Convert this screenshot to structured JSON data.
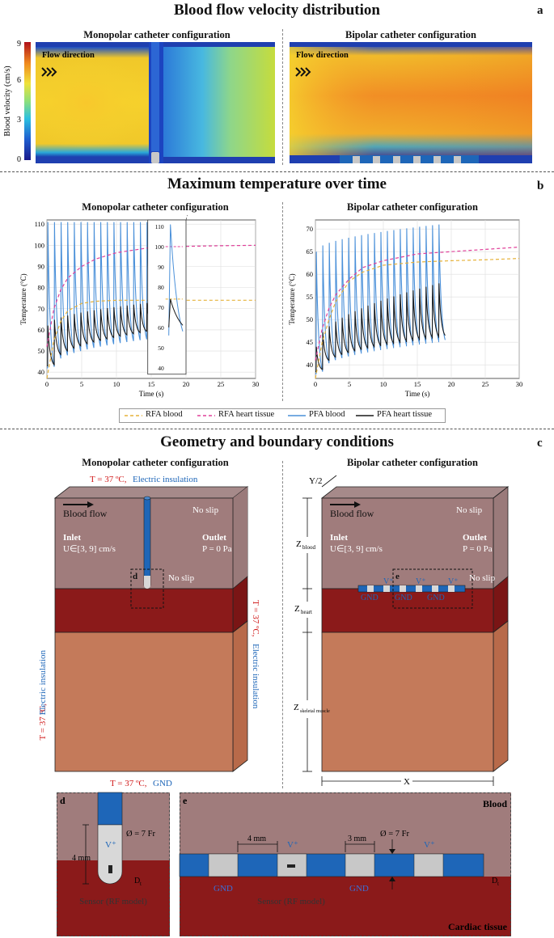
{
  "panel_a": {
    "title": "Blood flow velocity distribution",
    "letter": "a",
    "left_title": "Monopolar catheter configuration",
    "right_title": "Bipolar catheter configuration",
    "colorbar_label": "Blood velocity (cm/s)",
    "colorbar_ticks": [
      "9",
      "6",
      "3",
      "0"
    ],
    "flow_direction": "Flow direction"
  },
  "panel_b": {
    "title": "Maximum temperature over time",
    "letter": "b",
    "left_title": "Monopolar catheter configuration",
    "right_title": "Bipolar catheter configuration",
    "legend": [
      "RFA blood",
      "RFA heart tissue",
      "PFA blood",
      "PFA heart tissue"
    ]
  },
  "chart_data": [
    {
      "type": "line",
      "title": "Monopolar catheter configuration",
      "xlabel": "Time (s)",
      "ylabel": "Temperature (°C)",
      "xlim": [
        0,
        30
      ],
      "ylim": [
        37,
        112
      ],
      "xticks": [
        0,
        5,
        10,
        15,
        20,
        25,
        30
      ],
      "yticks": [
        40,
        50,
        60,
        70,
        80,
        90,
        100,
        110
      ],
      "grid": true,
      "pulse_count": 20,
      "series": [
        {
          "name": "RFA blood",
          "style": "dashed",
          "color": "#e6b23a",
          "x": [
            0,
            1,
            2,
            3,
            5,
            7,
            10,
            15,
            20,
            25,
            30
          ],
          "y": [
            37,
            55,
            64,
            69,
            72.5,
            73.5,
            74,
            74,
            74,
            74,
            74
          ]
        },
        {
          "name": "RFA heart tissue",
          "style": "dashed",
          "color": "#e0409a",
          "x": [
            0,
            1,
            2,
            3,
            5,
            7,
            10,
            15,
            20,
            25,
            30
          ],
          "y": [
            52,
            70,
            79,
            84.5,
            90,
            93.5,
            96.5,
            99,
            99.5,
            99.8,
            100
          ]
        },
        {
          "name": "PFA blood",
          "style": "solid",
          "color": "#4a90d9",
          "peak": 111,
          "base_start": 42,
          "base_end": 57
        },
        {
          "name": "PFA heart tissue",
          "style": "solid",
          "color": "#1a1a1a",
          "peak_start": 62,
          "peak_end": 74,
          "base_start": 43,
          "base_end": 61
        }
      ],
      "inset": {
        "ylim": [
          40,
          110
        ],
        "yticks": [
          40,
          50,
          60,
          70,
          80,
          90,
          100,
          110
        ]
      }
    },
    {
      "type": "line",
      "title": "Bipolar catheter configuration",
      "xlabel": "Time (s)",
      "ylabel": "Temperature (°C)",
      "xlim": [
        0,
        30
      ],
      "ylim": [
        37,
        72
      ],
      "xticks": [
        0,
        5,
        10,
        15,
        20,
        25,
        30
      ],
      "yticks": [
        40,
        45,
        50,
        55,
        60,
        65,
        70
      ],
      "grid": true,
      "pulse_count": 20,
      "series": [
        {
          "name": "RFA blood",
          "style": "dashed",
          "color": "#e6b23a",
          "x": [
            0,
            1,
            2,
            3,
            5,
            7,
            10,
            15,
            20,
            25,
            30
          ],
          "y": [
            37,
            45,
            50,
            54,
            58.5,
            60.5,
            62,
            62.7,
            63,
            63.2,
            63.5
          ]
        },
        {
          "name": "RFA heart tissue",
          "style": "dashed",
          "color": "#e0409a",
          "x": [
            0,
            1,
            2,
            3,
            5,
            7,
            10,
            15,
            20,
            25,
            30
          ],
          "y": [
            41,
            48,
            52.5,
            55.5,
            59,
            61.5,
            63,
            64.5,
            65,
            65.5,
            66
          ]
        },
        {
          "name": "PFA blood",
          "style": "solid",
          "color": "#4a90d9",
          "peak_start": 65,
          "peak_end": 71,
          "base_start": 38,
          "base_end": 45
        },
        {
          "name": "PFA heart tissue",
          "style": "solid",
          "color": "#1a1a1a",
          "peak_start": 44,
          "peak_end": 58,
          "base_start": 38.5,
          "base_end": 46
        }
      ]
    }
  ],
  "panel_c": {
    "title": "Geometry and boundary conditions",
    "letter": "c",
    "left_title": "Monopolar catheter configuration",
    "right_title": "Bipolar catheter configuration",
    "top_bc_temp": "T = 37 ºC,",
    "top_bc_elec": "Electric insulation",
    "side_temp": "T = 37 ºC,",
    "side_elec": "Electric insulation",
    "bottom_temp": "T = 37 ºC,",
    "bottom_elec": "GND",
    "blood_flow": "Blood flow",
    "no_slip": "No slip",
    "inlet": "Inlet",
    "inlet_u": "U∈[3, 9] cm/s",
    "outlet": "Outlet",
    "outlet_p": "P = 0 Pa",
    "box_d": "d",
    "box_e": "e",
    "y2": "Y/2",
    "z_blood": "Z",
    "z_blood_sub": "blood",
    "z_heart": "Z",
    "z_heart_sub": "heart",
    "z_muscle": "Z",
    "z_muscle_sub": "skeletal muscle",
    "x_label": "X",
    "gnd": "GND",
    "vplus": "V⁺"
  },
  "panel_d": {
    "letter": "d",
    "diameter": "Ø = 7 Fr",
    "length": "4 mm",
    "vplus": "V⁺",
    "dt": "D",
    "dt_sub": "t",
    "sensor": "Sensor (RF model)"
  },
  "panel_e": {
    "letter": "e",
    "blood": "Blood",
    "cardiac": "Cardiac tissue",
    "len4": "4 mm",
    "len3": "3 mm",
    "diameter": "Ø = 7 Fr",
    "vplus": "V⁺",
    "gnd": "GND",
    "sensor": "Sensor (RF model)",
    "dt": "D",
    "dt_sub": "t"
  }
}
